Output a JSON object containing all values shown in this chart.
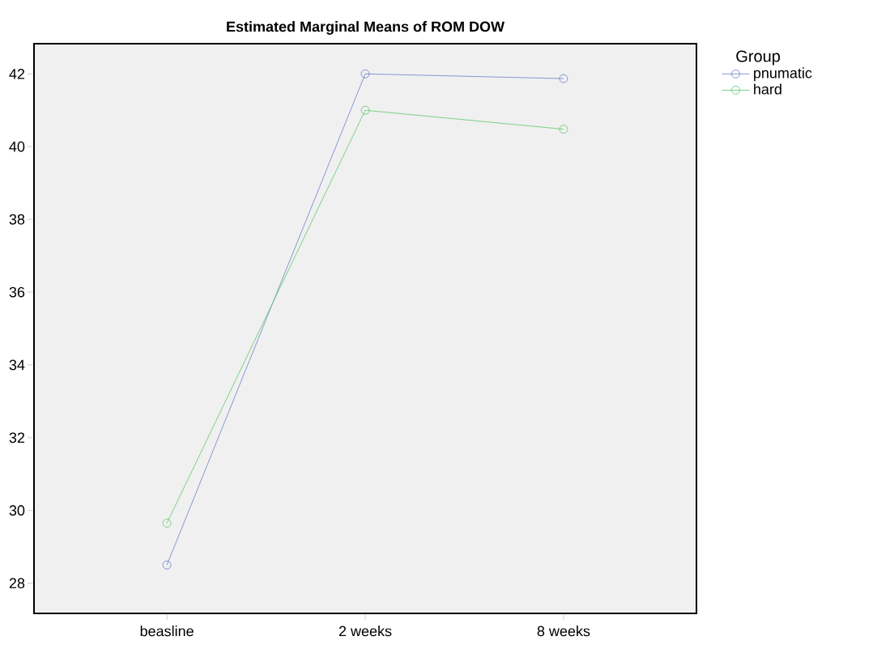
{
  "chart_data": {
    "type": "line",
    "title": "Estimated Marginal Means of ROM DOW",
    "legend_title": "Group",
    "categories": [
      "beasline",
      "2 weeks",
      "8 weeks"
    ],
    "series": [
      {
        "name": "pnumatic",
        "color": "#6a7fcc",
        "values": [
          28.5,
          42.0,
          41.87
        ]
      },
      {
        "name": "hard",
        "color": "#5cc86a",
        "values": [
          29.65,
          41.0,
          40.48
        ]
      }
    ],
    "ylim": [
      27.17,
      42.83
    ],
    "yticks": [
      28,
      30,
      32,
      34,
      36,
      38,
      40,
      42
    ],
    "marker": "circle",
    "line_style": "solid",
    "legend": "top right",
    "grid": false
  }
}
